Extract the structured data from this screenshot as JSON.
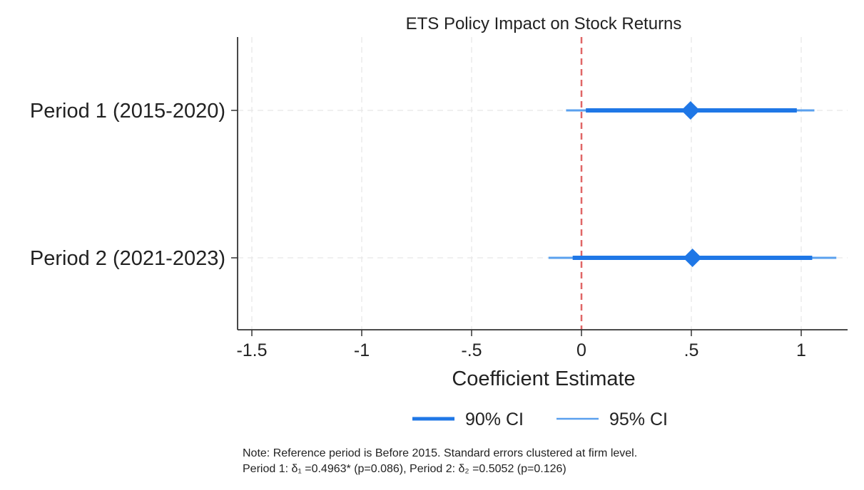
{
  "chart_data": {
    "type": "coefficient_plot",
    "title": "ETS Policy Impact on Stock Returns",
    "xlabel": "Coefficient Estimate",
    "ylabel": "",
    "xlim": [
      -1.55,
      1.2
    ],
    "x_ticks": [
      -1.5,
      -1,
      -0.5,
      0,
      0.5,
      1
    ],
    "x_tick_labels": [
      "-1.5",
      "-1",
      "-.5",
      "0",
      ".5",
      "1"
    ],
    "reference_line": {
      "x": 0,
      "style": "dashed",
      "color": "#e06666"
    },
    "grid": {
      "vertical": true,
      "horizontal": true,
      "style": "dashed"
    },
    "legend_position": "bottom",
    "colors": {
      "ci90": "#1f77e6",
      "ci95": "#5aa0ee",
      "point": "#1f77e6",
      "axis": "#333333",
      "grid": "#e6e6e6"
    },
    "legend": [
      {
        "key": "ci90",
        "label": "90% CI"
      },
      {
        "key": "ci95",
        "label": "95% CI"
      }
    ],
    "series": [
      {
        "name": "Period 1 (2015-2020)",
        "estimate": 0.4963,
        "ci90": [
          0.02,
          0.98
        ],
        "ci95": [
          -0.07,
          1.06
        ]
      },
      {
        "name": "Period 2 (2021-2023)",
        "estimate": 0.5052,
        "ci90": [
          -0.04,
          1.05
        ],
        "ci95": [
          -0.15,
          1.16
        ]
      }
    ],
    "note_lines": [
      "Note: Reference period is Before 2015. Standard errors clustered at firm level.",
      "Period 1: δ₁   =0.4963* (p=0.086), Period 2: δ₂   =0.5052 (p=0.126)"
    ]
  }
}
